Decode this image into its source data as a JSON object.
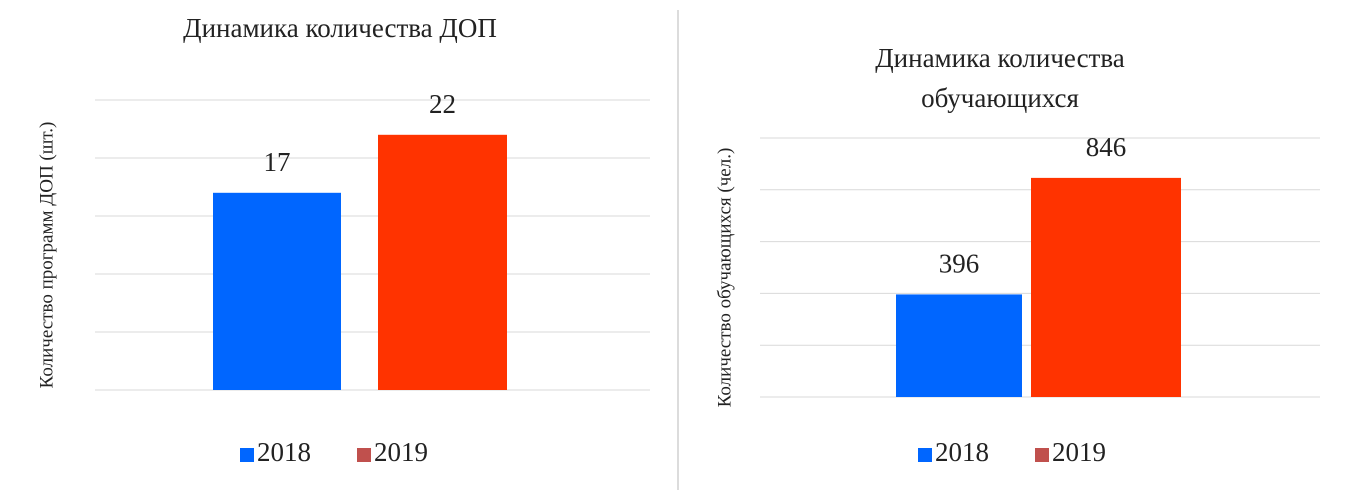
{
  "chart_data": [
    {
      "type": "bar",
      "title": "Динамика количества ДОП",
      "y_label": "Количество программ ДОП (шт.)",
      "categories": [
        null
      ],
      "series": [
        {
          "name": "2018",
          "color": "#0066ff",
          "legend_color": "#0066ff",
          "values": [
            17
          ]
        },
        {
          "name": "2019",
          "color": "#ff3300",
          "legend_color": "#c0504d",
          "values": [
            22
          ]
        }
      ],
      "ylim": [
        0,
        25
      ],
      "yticks": [
        0,
        5,
        10,
        15,
        20,
        25
      ],
      "grid": true,
      "legend": "bottom"
    },
    {
      "type": "bar",
      "title": "Динамика количества обучающихся",
      "y_label": "Количество обучающихся (чел.)",
      "categories": [
        null
      ],
      "series": [
        {
          "name": "2018",
          "color": "#0066ff",
          "legend_color": "#0066ff",
          "values": [
            396
          ]
        },
        {
          "name": "2019",
          "color": "#ff3300",
          "legend_color": "#c0504d",
          "values": [
            846
          ]
        }
      ],
      "ylim": [
        0,
        1000
      ],
      "yticks": [
        0,
        200,
        400,
        600,
        800,
        1000
      ],
      "grid": true,
      "legend": "bottom"
    }
  ]
}
